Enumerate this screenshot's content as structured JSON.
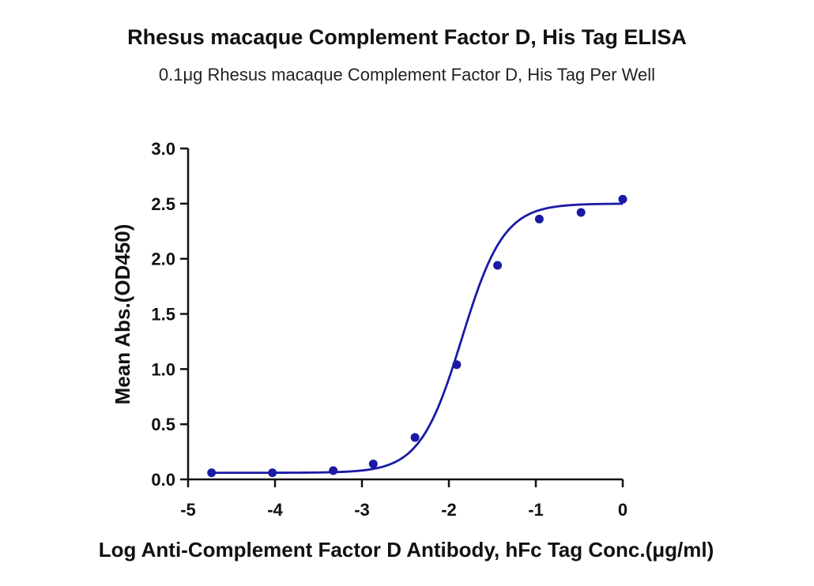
{
  "chart_data": {
    "type": "scatter",
    "title": "Rhesus macaque Complement Factor D, His Tag ELISA",
    "subtitle": "0.1μg Rhesus macaque Complement Factor D, His Tag Per Well",
    "xlabel": "Log Anti-Complement Factor D  Antibody, hFc Tag Conc.(μg/ml)",
    "ylabel": "Mean Abs.(OD450)",
    "xlim": [
      -5,
      0
    ],
    "ylim": [
      0,
      3.0
    ],
    "x_ticks": [
      "-5",
      "-4",
      "-3",
      "-2",
      "-1",
      "0"
    ],
    "y_ticks": [
      "0.0",
      "0.5",
      "1.0",
      "1.5",
      "2.0",
      "2.5",
      "3.0"
    ],
    "grid": false,
    "series": [
      {
        "color": "#1a1aa6",
        "points": [
          {
            "x": -4.73,
            "y": 0.06
          },
          {
            "x": -4.03,
            "y": 0.06
          },
          {
            "x": -3.33,
            "y": 0.08
          },
          {
            "x": -2.87,
            "y": 0.14
          },
          {
            "x": -2.39,
            "y": 0.38
          },
          {
            "x": -1.91,
            "y": 1.04
          },
          {
            "x": -1.44,
            "y": 1.94
          },
          {
            "x": -0.96,
            "y": 2.36
          },
          {
            "x": -0.48,
            "y": 2.42
          },
          {
            "x": 0.0,
            "y": 2.54
          }
        ],
        "fit": {
          "bottom": 0.06,
          "top": 2.5,
          "log_ec50": -1.85,
          "hill": 1.8
        }
      }
    ]
  }
}
